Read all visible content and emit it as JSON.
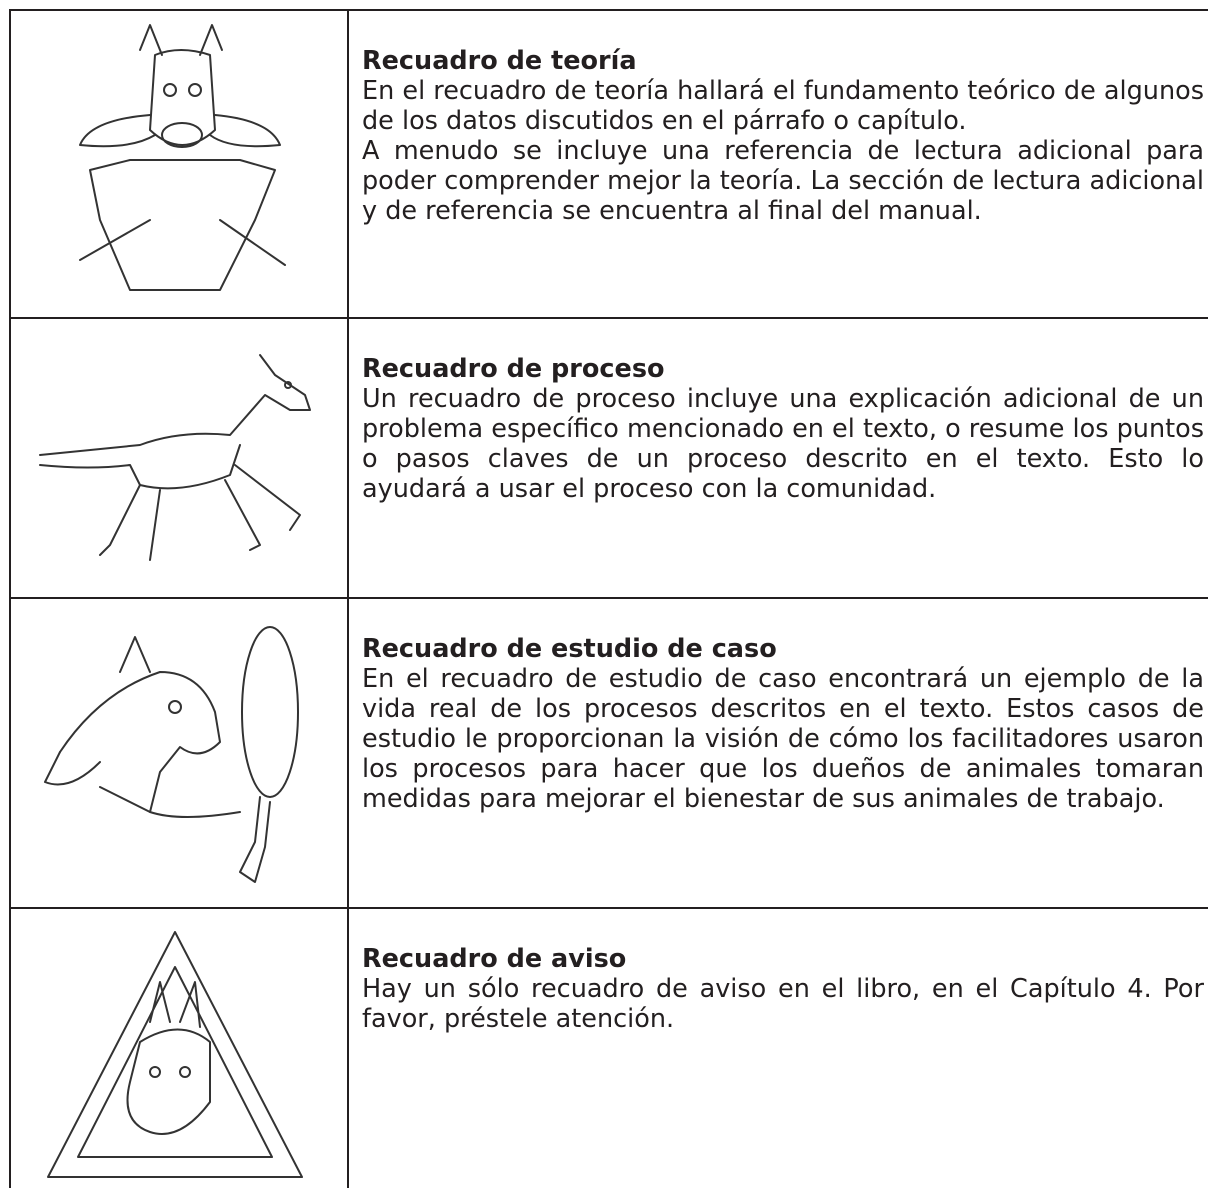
{
  "table": {
    "rows": [
      {
        "title": "Recuadro de teoría",
        "body": [
          "En el recuadro de teoría hallará el fundamento teórico de algunos de los datos discutidos en el párrafo o capítulo.",
          "A menudo  se incluye una referencia de lectura adicional para poder comprender mejor la teoría. La sección de lectura adicional y de referencia se encuentra al final del manual."
        ]
      },
      {
        "title": "Recuadro de proceso",
        "body": [
          "Un recuadro de proceso incluye una explicación adicional de un problema específico mencionado en el texto, o resume los puntos o pasos claves de un proceso descrito en el texto. Esto lo ayudará a usar el proceso con la comunidad."
        ]
      },
      {
        "title": "Recuadro de estudio de caso",
        "body": [
          "En el recuadro de estudio de caso encontrará un ejemplo de la vida real de los procesos descritos en el texto. Estos casos de estudio le proporcionan la visión de cómo los facilitadores usaron los procesos para hacer que los dueños de animales tomaran medidas para mejorar el bienestar de sus animales de trabajo."
        ]
      },
      {
        "title": "Recuadro de aviso",
        "body": [
          "Hay un sólo recuadro de aviso en el libro, en el Capítulo 4. Por favor, préstele atención."
        ]
      }
    ]
  }
}
